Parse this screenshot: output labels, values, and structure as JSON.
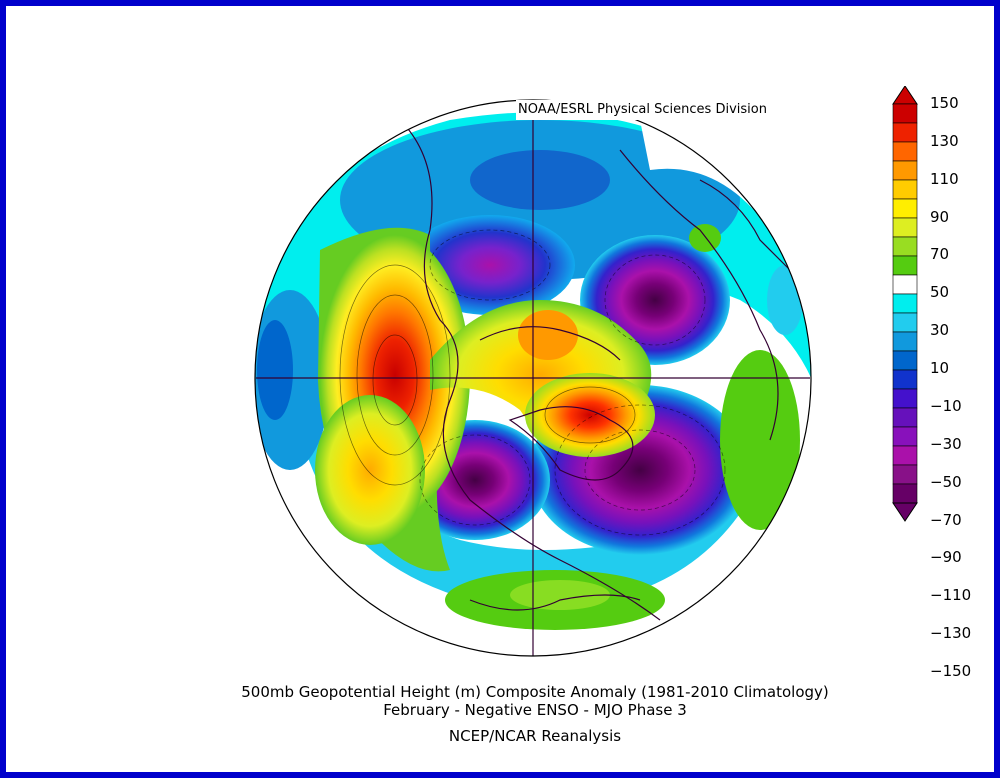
{
  "credit": "NOAA/ESRL Physical Sciences Division",
  "caption": {
    "line1": "500mb Geopotential Height (m) Composite Anomaly (1981-2010 Climatology)",
    "line2": "February - Negative ENSO - MJO Phase 3",
    "line3": "NCEP/NCAR Reanalysis"
  },
  "colorbar": {
    "labels": [
      "150",
      "130",
      "110",
      "90",
      "70",
      "50",
      "30",
      "10",
      "-10",
      "-30",
      "-50",
      "-70",
      "-90",
      "-110",
      "-130",
      "-150"
    ],
    "colors": [
      "#cc0000",
      "#ee2200",
      "#ff6600",
      "#ff9900",
      "#ffcc00",
      "#ffee00",
      "#ddee22",
      "#99dd22",
      "#55cc11",
      "#ffffff",
      "#00eeee",
      "#22ccee",
      "#1199dd",
      "#0066cc",
      "#1133cc",
      "#4411cc",
      "#6611bb",
      "#8811bb",
      "#aa11aa",
      "#881188",
      "#660066"
    ]
  }
}
